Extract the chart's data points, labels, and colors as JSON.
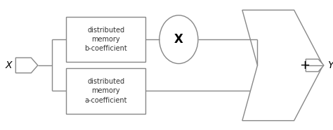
{
  "bg_color": "#ffffff",
  "line_color": "#888888",
  "text_color": "#333333",
  "box_color": "#ffffff",
  "figsize": [
    4.74,
    1.85
  ],
  "dpi": 100,
  "input_label": "X",
  "output_label": "Y",
  "box1_label": "distributed\nmemory\nb-coefficient",
  "box2_label": "distributed\nmemory\na-coefficient",
  "mult_label": "X",
  "adder_label": "+"
}
